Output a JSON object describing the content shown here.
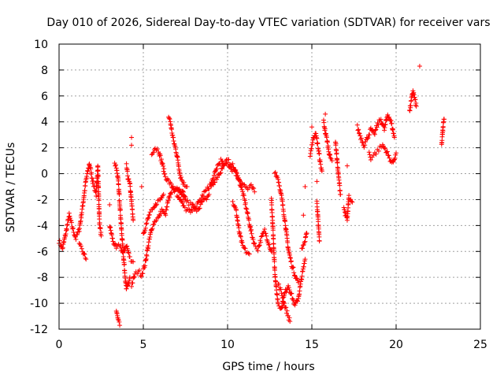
{
  "chart_data": {
    "type": "scatter",
    "title": "Day 010 of 2026, Sidereal Day-to-day VTEC variation (SDTVAR) for receiver vars",
    "xlabel": "GPS time / hours",
    "ylabel": "SDTVAR / TECUs",
    "xlim": [
      0,
      25
    ],
    "ylim": [
      -12,
      10
    ],
    "xticks": [
      "0",
      "5",
      "10",
      "15",
      "20",
      "25"
    ],
    "yticks": [
      "-12",
      "-10",
      "-8",
      "-6",
      "-4",
      "-2",
      "0",
      "2",
      "4",
      "6",
      "8",
      "10"
    ],
    "grid": true,
    "marker": "+",
    "color": "#ff0000",
    "segments": [
      [
        [
          0.0,
          -5.2
        ],
        [
          0.2,
          -5.8
        ],
        [
          0.4,
          -4.6
        ],
        [
          0.6,
          -3.2
        ],
        [
          0.8,
          -4.2
        ],
        [
          1.0,
          -5.0
        ],
        [
          1.2,
          -4.3
        ],
        [
          1.4,
          -2.5
        ],
        [
          1.6,
          -0.5
        ],
        [
          1.8,
          0.8
        ],
        [
          2.0,
          -0.6
        ],
        [
          2.2,
          -1.6
        ],
        [
          2.3,
          0.6
        ],
        [
          2.4,
          -3.8
        ],
        [
          2.5,
          -4.8
        ]
      ],
      [
        [
          1.2,
          -5.5
        ],
        [
          1.4,
          -6.0
        ],
        [
          1.6,
          -6.6
        ]
      ],
      [
        [
          3.0,
          -4.0
        ],
        [
          3.2,
          -5.2
        ],
        [
          3.4,
          -5.8
        ],
        [
          3.6,
          -5.5
        ],
        [
          3.8,
          -6.2
        ],
        [
          4.0,
          -5.5
        ],
        [
          4.2,
          -6.5
        ],
        [
          4.4,
          -6.8
        ]
      ],
      [
        [
          3.3,
          0.8
        ],
        [
          3.4,
          0.5
        ],
        [
          3.5,
          -0.4
        ],
        [
          3.6,
          -2.2
        ],
        [
          3.7,
          -4.3
        ],
        [
          3.8,
          -6.0
        ],
        [
          3.9,
          -7.6
        ],
        [
          4.0,
          -9.0
        ],
        [
          4.1,
          -8.6
        ],
        [
          4.2,
          -8.0
        ]
      ],
      [
        [
          3.4,
          -10.6
        ],
        [
          3.5,
          -11.3
        ],
        [
          3.6,
          -11.7
        ]
      ],
      [
        [
          4.0,
          0.6
        ],
        [
          4.1,
          -0.4
        ],
        [
          4.2,
          -0.8
        ],
        [
          4.3,
          -2.2
        ],
        [
          4.4,
          -3.6
        ]
      ],
      [
        [
          4.3,
          -8.6
        ],
        [
          4.5,
          -7.8
        ],
        [
          4.7,
          -7.5
        ],
        [
          4.9,
          -7.8
        ],
        [
          5.1,
          -7.0
        ],
        [
          5.3,
          -5.5
        ],
        [
          5.5,
          -4.2
        ],
        [
          5.7,
          -3.6
        ],
        [
          5.9,
          -3.4
        ],
        [
          6.1,
          -2.8
        ],
        [
          6.3,
          -3.2
        ],
        [
          6.5,
          -2.0
        ],
        [
          6.7,
          -1.2
        ],
        [
          6.9,
          -1.0
        ],
        [
          7.1,
          -1.5
        ],
        [
          7.3,
          -1.2
        ],
        [
          7.5,
          -1.8
        ]
      ],
      [
        [
          5.0,
          -4.6
        ],
        [
          5.2,
          -3.8
        ],
        [
          5.4,
          -3.0
        ],
        [
          5.6,
          -2.8
        ],
        [
          5.8,
          -2.2
        ],
        [
          6.0,
          -2.0
        ],
        [
          6.2,
          -1.6
        ]
      ],
      [
        [
          5.5,
          1.6
        ],
        [
          5.7,
          2.0
        ],
        [
          5.9,
          1.8
        ],
        [
          6.1,
          0.9
        ],
        [
          6.3,
          -0.2
        ],
        [
          6.5,
          -0.6
        ],
        [
          6.7,
          -1.0
        ],
        [
          6.9,
          -1.4
        ],
        [
          7.1,
          -1.2
        ],
        [
          7.3,
          -1.8
        ],
        [
          7.5,
          -2.0
        ],
        [
          7.7,
          -2.3
        ],
        [
          7.9,
          -2.4
        ],
        [
          8.1,
          -2.8
        ],
        [
          8.3,
          -2.6
        ],
        [
          8.5,
          -2.2
        ],
        [
          8.7,
          -2.0
        ],
        [
          8.9,
          -1.6
        ]
      ],
      [
        [
          6.5,
          4.4
        ],
        [
          6.6,
          4.0
        ],
        [
          6.7,
          3.2
        ],
        [
          6.8,
          2.5
        ],
        [
          6.9,
          2.0
        ],
        [
          7.0,
          1.4
        ],
        [
          7.1,
          0.6
        ],
        [
          7.2,
          -0.2
        ],
        [
          7.4,
          -0.8
        ],
        [
          7.6,
          -1.0
        ]
      ],
      [
        [
          7.0,
          -1.6
        ],
        [
          7.2,
          -2.0
        ],
        [
          7.4,
          -2.6
        ],
        [
          7.6,
          -2.8
        ],
        [
          7.8,
          -3.0
        ],
        [
          8.0,
          -2.6
        ],
        [
          8.2,
          -2.4
        ],
        [
          8.4,
          -2.0
        ],
        [
          8.6,
          -1.5
        ],
        [
          8.8,
          -1.2
        ],
        [
          9.0,
          -0.8
        ],
        [
          9.2,
          -0.2
        ],
        [
          9.4,
          0.6
        ],
        [
          9.6,
          1.0
        ],
        [
          9.8,
          0.6
        ],
        [
          10.0,
          0.8
        ],
        [
          10.2,
          0.4
        ],
        [
          10.4,
          0.2
        ],
        [
          10.6,
          -0.2
        ],
        [
          10.8,
          -0.6
        ],
        [
          11.0,
          -0.9
        ],
        [
          11.2,
          -1.2
        ],
        [
          11.4,
          -1.0
        ],
        [
          11.6,
          -1.4
        ]
      ],
      [
        [
          9.0,
          -1.0
        ],
        [
          9.2,
          -0.6
        ],
        [
          9.4,
          -0.2
        ],
        [
          9.6,
          0.2
        ],
        [
          9.8,
          0.8
        ],
        [
          10.0,
          1.0
        ],
        [
          10.2,
          0.8
        ],
        [
          10.4,
          0.4
        ],
        [
          10.6,
          -0.2
        ],
        [
          10.8,
          -1.0
        ],
        [
          11.0,
          -2.0
        ],
        [
          11.2,
          -3.2
        ],
        [
          11.4,
          -4.5
        ],
        [
          11.6,
          -5.5
        ],
        [
          11.8,
          -5.8
        ],
        [
          12.0,
          -5.0
        ],
        [
          12.2,
          -4.4
        ],
        [
          12.4,
          -5.2
        ],
        [
          12.6,
          -6.0
        ]
      ],
      [
        [
          10.3,
          -2.2
        ],
        [
          10.5,
          -2.8
        ],
        [
          10.7,
          -4.6
        ],
        [
          10.9,
          -5.6
        ],
        [
          11.1,
          -6.0
        ],
        [
          11.3,
          -6.2
        ]
      ],
      [
        [
          12.6,
          -2.0
        ],
        [
          12.7,
          -4.5
        ],
        [
          12.8,
          -7.5
        ],
        [
          12.9,
          -9.0
        ],
        [
          13.0,
          -10.0
        ],
        [
          13.2,
          -10.4
        ],
        [
          13.4,
          -9.2
        ],
        [
          13.6,
          -8.6
        ],
        [
          13.8,
          -9.4
        ],
        [
          14.0,
          -10.2
        ],
        [
          14.2,
          -9.6
        ],
        [
          14.4,
          -8.0
        ],
        [
          14.6,
          -6.6
        ]
      ],
      [
        [
          12.8,
          0.2
        ],
        [
          13.0,
          -0.4
        ],
        [
          13.2,
          -1.8
        ],
        [
          13.4,
          -3.6
        ],
        [
          13.6,
          -5.8
        ],
        [
          13.8,
          -7.0
        ],
        [
          14.0,
          -7.8
        ],
        [
          14.2,
          -8.4
        ]
      ],
      [
        [
          13.0,
          -8.5
        ],
        [
          13.2,
          -9.2
        ],
        [
          13.4,
          -10.2
        ],
        [
          13.6,
          -11.0
        ],
        [
          13.7,
          -11.4
        ]
      ],
      [
        [
          14.4,
          -5.8
        ],
        [
          14.6,
          -5.2
        ],
        [
          14.7,
          -4.6
        ]
      ],
      [
        [
          14.9,
          1.5
        ],
        [
          15.0,
          2.2
        ],
        [
          15.1,
          2.8
        ],
        [
          15.2,
          3.2
        ],
        [
          15.3,
          2.6
        ],
        [
          15.4,
          1.8
        ],
        [
          15.5,
          0.8
        ],
        [
          15.6,
          0.2
        ]
      ],
      [
        [
          15.3,
          -2.2
        ],
        [
          15.35,
          -3.2
        ],
        [
          15.4,
          -4.2
        ],
        [
          15.45,
          -5.2
        ]
      ],
      [
        [
          15.7,
          4.0
        ],
        [
          15.8,
          3.2
        ],
        [
          15.9,
          2.6
        ],
        [
          16.0,
          1.8
        ],
        [
          16.1,
          1.2
        ],
        [
          16.2,
          1.0
        ]
      ],
      [
        [
          16.4,
          2.6
        ],
        [
          16.5,
          1.0
        ],
        [
          16.6,
          -0.4
        ],
        [
          16.7,
          -1.6
        ]
      ],
      [
        [
          16.9,
          -2.6
        ],
        [
          17.0,
          -3.2
        ],
        [
          17.1,
          -3.6
        ],
        [
          17.2,
          -1.8
        ],
        [
          17.3,
          -2.0
        ],
        [
          17.4,
          -2.2
        ]
      ],
      [
        [
          17.7,
          3.6
        ],
        [
          17.9,
          2.8
        ],
        [
          18.1,
          2.2
        ],
        [
          18.3,
          2.8
        ],
        [
          18.5,
          3.4
        ],
        [
          18.7,
          3.0
        ],
        [
          18.9,
          3.8
        ],
        [
          19.1,
          4.2
        ],
        [
          19.3,
          3.4
        ],
        [
          19.5,
          4.6
        ],
        [
          19.7,
          4.0
        ],
        [
          19.9,
          2.8
        ]
      ],
      [
        [
          18.4,
          1.6
        ],
        [
          18.5,
          1.2
        ],
        [
          19.2,
          2.2
        ],
        [
          19.4,
          1.8
        ],
        [
          19.6,
          1.2
        ],
        [
          19.8,
          0.8
        ],
        [
          20.0,
          1.6
        ]
      ],
      [
        [
          20.8,
          4.8
        ],
        [
          20.9,
          5.6
        ],
        [
          21.0,
          6.4
        ],
        [
          21.1,
          5.8
        ],
        [
          21.2,
          5.2
        ]
      ],
      [
        [
          22.7,
          2.2
        ],
        [
          22.75,
          3.0
        ],
        [
          22.8,
          3.8
        ],
        [
          22.85,
          4.2
        ]
      ]
    ],
    "isolated_points": [
      [
        4.3,
        2.8
      ],
      [
        4.3,
        2.2
      ],
      [
        4.9,
        -1.0
      ],
      [
        15.0,
        3.6
      ],
      [
        15.8,
        4.6
      ],
      [
        17.1,
        0.6
      ],
      [
        21.4,
        8.3
      ],
      [
        14.6,
        -1.0
      ],
      [
        14.5,
        -3.2
      ],
      [
        15.3,
        -0.6
      ],
      [
        3.0,
        -2.4
      ]
    ]
  }
}
